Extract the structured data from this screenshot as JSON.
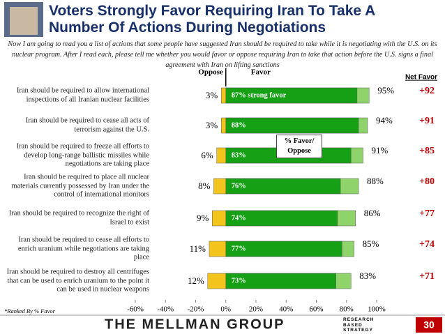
{
  "chart_data": {
    "type": "diverging_bar",
    "title": "Voters Strongly Favor Requiring Iran To Take A Number Of Actions During Negotiations",
    "subtitle": "Now I am going to read you a list of actions that some people have suggested Iran should be required to take while it is negotiating with the U.S. on its nuclear program.  After I read each, please tell me whether you would favor or oppose requiring Iran to take that action before the U.S. signs a final agreement with Iran on lifting sanctions",
    "categories": [
      "Iran should be required to allow international inspections of all Iranian nuclear facilities",
      "Iran should be required to cease all acts of terrorism against the U.S.",
      "Iran should be required to freeze all efforts to develop long-range ballistic missiles while negotiations are taking place",
      "Iran should be required to place all nuclear materials currently possessed by Iran under the control of international monitors",
      "Iran should be required to recognize the right of Israel to exist",
      "Iran should be required to cease all efforts to enrich uranium while negotiations are taking place",
      "Iran should be required to destroy all centrifuges that can be used to enrich uranium to the point it can be used in nuclear weapons"
    ],
    "series": [
      {
        "name": "Oppose",
        "color": "#f2c41c",
        "values": [
          -3,
          -3,
          -6,
          -8,
          -9,
          -11,
          -12
        ],
        "value_labels": [
          "3%",
          "3%",
          "6%",
          "8%",
          "9%",
          "11%",
          "12%"
        ]
      },
      {
        "name": "Favor",
        "color": "#8fd46a",
        "values": [
          95,
          94,
          91,
          88,
          86,
          85,
          83
        ],
        "value_labels": [
          "95%",
          "94%",
          "91%",
          "88%",
          "86%",
          "85%",
          "83%"
        ]
      },
      {
        "color": "#16a016",
        "values": [
          87,
          88,
          83,
          76,
          74,
          77,
          73
        ],
        "value_labels": [
          "87% strong favor",
          "88%",
          "83%",
          "76%",
          "74%",
          "77%",
          "73%"
        ]
      }
    ],
    "net_favor": {
      "title": "Net Favor",
      "color": "#c00000",
      "values": [
        92,
        91,
        85,
        80,
        77,
        74,
        71
      ],
      "value_labels": [
        "+92",
        "+91",
        "+85",
        "+80",
        "+77",
        "+74",
        "+71"
      ]
    },
    "annotation": "% Favor/ Oppose",
    "footnote": "*Ranked By % Favor",
    "xlim": [
      -60,
      100
    ],
    "xticks": [
      {
        "value": -60,
        "label": "-60%"
      },
      {
        "value": -40,
        "label": "-40%"
      },
      {
        "value": -20,
        "label": "-20%"
      },
      {
        "value": 0,
        "label": "0%"
      },
      {
        "value": 20,
        "label": "20%"
      },
      {
        "value": 40,
        "label": "40%"
      },
      {
        "value": 60,
        "label": "60%"
      },
      {
        "value": 80,
        "label": "80%"
      },
      {
        "value": 100,
        "label": "100%"
      }
    ],
    "grid": false
  },
  "footer": {
    "brand": "THE MELLMAN GROUP",
    "tagline": "RESEARCH BASED STRATEGY",
    "page": "30"
  }
}
